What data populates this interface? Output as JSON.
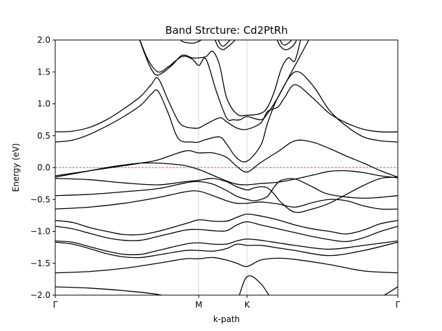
{
  "chart_data": {
    "type": "line",
    "title": "Band Strcture: Cd2PtRh",
    "xlabel": "k-path",
    "ylabel": "Energy (eV)",
    "ylim": [
      -2.0,
      2.0
    ],
    "xlim": [
      0.0,
      1.0
    ],
    "yticks": [
      {
        "value": -2.0,
        "label": "−2.0"
      },
      {
        "value": -1.5,
        "label": "−1.5"
      },
      {
        "value": -1.0,
        "label": "−1.0"
      },
      {
        "value": -0.5,
        "label": "−0.5"
      },
      {
        "value": 0.0,
        "label": "0.0"
      },
      {
        "value": 0.5,
        "label": "0.5"
      },
      {
        "value": 1.0,
        "label": "1.0"
      },
      {
        "value": 1.5,
        "label": "1.5"
      },
      {
        "value": 2.0,
        "label": "2.0"
      }
    ],
    "xticks": [
      {
        "value": 0.0,
        "label": "Γ"
      },
      {
        "value": 0.419,
        "label": "M"
      },
      {
        "value": 0.56,
        "label": "K"
      },
      {
        "value": 1.0,
        "label": "Γ"
      }
    ],
    "high_symmetry_lines": [
      0.419,
      0.56
    ],
    "fermi_level": 0.0,
    "grid": false,
    "line_color": "#000000",
    "fermi_color": "#ff0000",
    "vline_color": "#cccccc",
    "series": [
      {
        "x": [
          0,
          0.1,
          0.2,
          0.3,
          0.38,
          0.419,
          0.46,
          0.5,
          0.53,
          0.56,
          0.6,
          0.65,
          0.7,
          0.8,
          0.9,
          1.0
        ],
        "y": [
          -1.87,
          -1.89,
          -1.93,
          -1.99,
          -2.1,
          -2.2,
          -2.3,
          -2.3,
          -2.1,
          -1.71,
          -1.82,
          -2.2,
          -2.4,
          -2.5,
          -2.2,
          -1.87
        ]
      },
      {
        "x": [
          0,
          0.1,
          0.2,
          0.3,
          0.38,
          0.419,
          0.46,
          0.5,
          0.53,
          0.56,
          0.6,
          0.65,
          0.7,
          0.8,
          0.9,
          1.0
        ],
        "y": [
          -1.65,
          -1.63,
          -1.58,
          -1.5,
          -1.43,
          -1.43,
          -1.41,
          -1.45,
          -1.5,
          -1.55,
          -1.45,
          -1.42,
          -1.44,
          -1.52,
          -1.62,
          -1.65
        ]
      },
      {
        "x": [
          0,
          0.05,
          0.1,
          0.15,
          0.2,
          0.25,
          0.3,
          0.38,
          0.419,
          0.46,
          0.5,
          0.53,
          0.56,
          0.6,
          0.65,
          0.7,
          0.8,
          0.9,
          1.0
        ],
        "y": [
          -1.17,
          -1.2,
          -1.27,
          -1.35,
          -1.4,
          -1.41,
          -1.37,
          -1.3,
          -1.3,
          -1.31,
          -1.27,
          -1.2,
          -1.22,
          -1.22,
          -1.26,
          -1.3,
          -1.38,
          -1.3,
          -1.17
        ]
      },
      {
        "x": [
          0,
          0.05,
          0.1,
          0.15,
          0.2,
          0.25,
          0.3,
          0.38,
          0.419,
          0.46,
          0.5,
          0.53,
          0.56,
          0.6,
          0.65,
          0.7,
          0.8,
          0.9,
          1.0
        ],
        "y": [
          -1.15,
          -1.17,
          -1.24,
          -1.31,
          -1.36,
          -1.36,
          -1.3,
          -1.2,
          -1.18,
          -1.2,
          -1.2,
          -1.15,
          -1.12,
          -1.14,
          -1.18,
          -1.22,
          -1.28,
          -1.22,
          -1.15
        ]
      },
      {
        "x": [
          0,
          0.05,
          0.1,
          0.15,
          0.2,
          0.25,
          0.3,
          0.38,
          0.419,
          0.46,
          0.5,
          0.53,
          0.56,
          0.6,
          0.65,
          0.7,
          0.75,
          0.8,
          0.85,
          0.9,
          0.95,
          1.0
        ],
        "y": [
          -0.92,
          -0.96,
          -1.03,
          -1.1,
          -1.14,
          -1.14,
          -1.08,
          -0.98,
          -0.97,
          -0.99,
          -0.99,
          -0.9,
          -0.85,
          -0.9,
          -0.96,
          -1.02,
          -1.08,
          -1.13,
          -1.16,
          -1.1,
          -1.0,
          -0.92
        ]
      },
      {
        "x": [
          0,
          0.05,
          0.1,
          0.15,
          0.2,
          0.25,
          0.3,
          0.38,
          0.419,
          0.46,
          0.5,
          0.53,
          0.56,
          0.6,
          0.65,
          0.7,
          0.75,
          0.8,
          0.85,
          0.9,
          0.95,
          1.0
        ],
        "y": [
          -0.83,
          -0.86,
          -0.94,
          -1.0,
          -1.05,
          -1.05,
          -1.0,
          -0.88,
          -0.82,
          -0.84,
          -0.84,
          -0.78,
          -0.73,
          -0.76,
          -0.82,
          -0.9,
          -0.96,
          -1.0,
          -1.04,
          -0.98,
          -0.88,
          -0.83
        ]
      },
      {
        "x": [
          0,
          0.1,
          0.2,
          0.3,
          0.38,
          0.419,
          0.46,
          0.5,
          0.53,
          0.56,
          0.6,
          0.65,
          0.7,
          0.75,
          0.8,
          0.85,
          0.9,
          0.95,
          1.0
        ],
        "y": [
          -0.65,
          -0.62,
          -0.56,
          -0.47,
          -0.38,
          -0.37,
          -0.44,
          -0.52,
          -0.56,
          -0.56,
          -0.54,
          -0.57,
          -0.62,
          -0.55,
          -0.5,
          -0.52,
          -0.6,
          -0.65,
          -0.65
        ]
      },
      {
        "x": [
          0,
          0.1,
          0.2,
          0.3,
          0.38,
          0.419,
          0.46,
          0.5,
          0.53,
          0.56,
          0.58,
          0.6,
          0.62,
          0.64,
          0.66,
          0.7,
          0.75,
          0.8,
          0.9,
          1.0
        ],
        "y": [
          -0.44,
          -0.42,
          -0.38,
          -0.33,
          -0.24,
          -0.22,
          -0.26,
          -0.36,
          -0.45,
          -0.5,
          -0.52,
          -0.5,
          -0.45,
          -0.3,
          -0.2,
          -0.18,
          -0.3,
          -0.42,
          -0.48,
          -0.44
        ]
      },
      {
        "x": [
          0,
          0.1,
          0.2,
          0.3,
          0.38,
          0.419,
          0.46,
          0.5,
          0.53,
          0.56,
          0.58,
          0.6,
          0.62,
          0.64,
          0.66,
          0.7,
          0.75,
          0.8,
          0.85,
          0.9,
          0.95,
          1.0
        ],
        "y": [
          -0.17,
          -0.19,
          -0.24,
          -0.27,
          -0.22,
          -0.2,
          -0.17,
          -0.22,
          -0.3,
          -0.35,
          -0.32,
          -0.3,
          -0.32,
          -0.42,
          -0.55,
          -0.7,
          -0.65,
          -0.56,
          -0.42,
          -0.28,
          -0.17,
          -0.15
        ]
      },
      {
        "x": [
          0,
          0.05,
          0.1,
          0.15,
          0.2,
          0.25,
          0.3,
          0.35,
          0.38,
          0.419,
          0.46,
          0.5,
          0.53,
          0.56,
          0.6,
          0.65,
          0.7,
          0.75,
          0.8,
          0.85,
          0.9,
          0.95,
          1.0
        ],
        "y": [
          -0.15,
          -0.1,
          -0.05,
          0.0,
          0.04,
          0.07,
          0.07,
          0.05,
          0.03,
          -0.03,
          -0.12,
          -0.21,
          -0.26,
          -0.27,
          -0.25,
          -0.23,
          -0.18,
          -0.12,
          -0.06,
          -0.05,
          -0.08,
          -0.13,
          -0.16
        ]
      },
      {
        "x": [
          0,
          0.05,
          0.1,
          0.15,
          0.2,
          0.25,
          0.3,
          0.38,
          0.419,
          0.46,
          0.5,
          0.53,
          0.56,
          0.6,
          0.65,
          0.7,
          0.75,
          0.8,
          0.85,
          0.9,
          0.95,
          1.0
        ],
        "y": [
          -0.13,
          -0.09,
          -0.05,
          -0.01,
          0.03,
          0.07,
          0.12,
          0.26,
          0.23,
          0.23,
          0.16,
          0.02,
          -0.07,
          0.08,
          0.25,
          0.42,
          0.4,
          0.3,
          0.18,
          0.07,
          -0.05,
          -0.15
        ]
      },
      {
        "x": [
          0,
          0.05,
          0.1,
          0.15,
          0.2,
          0.25,
          0.28,
          0.3,
          0.33,
          0.36,
          0.4,
          0.419,
          0.44,
          0.48,
          0.5,
          0.53,
          0.56,
          0.6,
          0.62,
          0.65,
          0.7,
          0.75,
          0.8,
          0.85,
          0.9,
          0.95,
          1.0
        ],
        "y": [
          0.4,
          0.43,
          0.52,
          0.65,
          0.8,
          0.98,
          1.15,
          1.2,
          0.85,
          0.45,
          0.4,
          0.4,
          0.44,
          0.48,
          0.37,
          0.15,
          0.1,
          0.35,
          0.7,
          1.1,
          1.5,
          1.3,
          0.9,
          0.65,
          0.48,
          0.42,
          0.4
        ]
      },
      {
        "x": [
          0,
          0.05,
          0.1,
          0.15,
          0.2,
          0.25,
          0.28,
          0.3,
          0.33,
          0.36,
          0.38,
          0.4,
          0.419,
          0.44,
          0.48,
          0.5,
          0.53,
          0.56,
          0.6,
          0.62,
          0.65,
          0.67,
          0.7,
          0.75,
          0.8,
          0.85,
          0.9,
          0.95,
          1.0
        ],
        "y": [
          0.56,
          0.57,
          0.63,
          0.75,
          0.92,
          1.12,
          1.3,
          1.4,
          1.05,
          0.72,
          0.64,
          0.62,
          0.62,
          0.68,
          0.78,
          0.72,
          0.62,
          0.6,
          0.7,
          0.88,
          0.95,
          1.1,
          1.3,
          1.1,
          0.85,
          0.7,
          0.6,
          0.56,
          0.56
        ]
      },
      {
        "x": [
          0.24,
          0.27,
          0.3,
          0.33,
          0.37,
          0.4,
          0.419,
          0.44,
          0.47,
          0.5,
          0.52,
          0.54,
          0.56,
          0.6,
          0.62,
          0.65,
          0.68,
          0.7,
          0.72,
          0.75
        ],
        "y": [
          2.1,
          1.7,
          1.5,
          1.58,
          1.74,
          1.7,
          1.6,
          1.7,
          1.2,
          0.78,
          0.75,
          0.75,
          0.8,
          0.75,
          0.85,
          1.1,
          1.4,
          1.6,
          1.8,
          2.1
        ]
      },
      {
        "x": [
          0.24,
          0.26,
          0.28,
          0.3,
          0.34,
          0.37,
          0.4,
          0.419,
          0.44,
          0.46,
          0.48,
          0.5,
          0.53,
          0.56,
          0.6,
          0.62,
          0.64,
          0.66,
          0.68,
          0.7,
          0.72
        ],
        "y": [
          2.1,
          1.8,
          1.55,
          1.45,
          1.6,
          1.76,
          1.72,
          1.72,
          1.74,
          1.82,
          1.6,
          1.1,
          0.84,
          0.82,
          0.85,
          0.95,
          1.2,
          1.55,
          1.72,
          1.68,
          2.1
        ]
      },
      {
        "x": [
          0.35,
          0.37,
          0.4,
          0.419,
          0.44,
          0.46,
          0.48,
          0.5,
          0.52
        ],
        "y": [
          2.1,
          1.98,
          1.95,
          1.98,
          2.04,
          2.1,
          2.1,
          2.1,
          2.1
        ]
      },
      {
        "x": [
          0.47,
          0.48,
          0.49,
          0.5,
          0.51,
          0.52,
          0.53
        ],
        "y": [
          2.1,
          1.95,
          1.9,
          1.94,
          2.0,
          2.05,
          2.1
        ]
      },
      {
        "x": [
          0.46,
          0.475,
          0.49,
          0.5,
          0.51,
          0.525,
          0.54
        ],
        "y": [
          2.1,
          1.9,
          1.85,
          1.88,
          1.92,
          2.0,
          2.1
        ]
      },
      {
        "x": [
          0.65,
          0.66,
          0.67,
          0.68,
          0.69,
          0.7
        ],
        "y": [
          2.1,
          1.96,
          1.92,
          1.95,
          2.0,
          2.1
        ]
      },
      {
        "x": [
          0.64,
          0.655,
          0.67,
          0.685,
          0.7,
          0.71
        ],
        "y": [
          2.1,
          1.92,
          1.85,
          1.87,
          1.95,
          2.1
        ]
      }
    ]
  }
}
